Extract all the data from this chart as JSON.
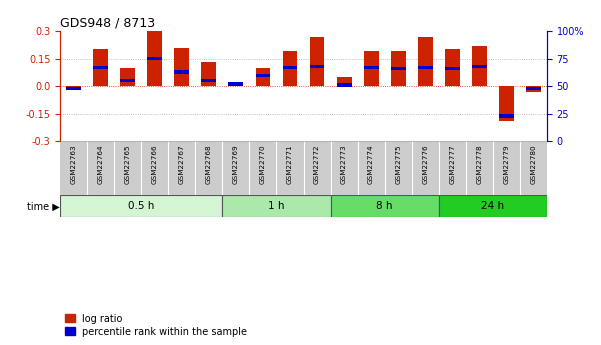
{
  "title": "GDS948 / 8713",
  "samples": [
    "GSM22763",
    "GSM22764",
    "GSM22765",
    "GSM22766",
    "GSM22767",
    "GSM22768",
    "GSM22769",
    "GSM22770",
    "GSM22771",
    "GSM22772",
    "GSM22773",
    "GSM22774",
    "GSM22775",
    "GSM22776",
    "GSM22777",
    "GSM22778",
    "GSM22779",
    "GSM22780"
  ],
  "log_ratio": [
    -0.02,
    0.2,
    0.1,
    0.3,
    0.21,
    0.13,
    0.0,
    0.1,
    0.19,
    0.27,
    0.05,
    0.19,
    0.19,
    0.27,
    0.2,
    0.22,
    -0.19,
    -0.03
  ],
  "percentile_rank": [
    48,
    67,
    55,
    75,
    63,
    55,
    52,
    60,
    67,
    68,
    51,
    67,
    66,
    67,
    66,
    68,
    23,
    48
  ],
  "time_groups": [
    {
      "label": "0.5 h",
      "start": 0,
      "end": 6,
      "color": "#d4f5d4"
    },
    {
      "label": "1 h",
      "start": 6,
      "end": 10,
      "color": "#aae9aa"
    },
    {
      "label": "8 h",
      "start": 10,
      "end": 14,
      "color": "#66dd66"
    },
    {
      "label": "24 h",
      "start": 14,
      "end": 18,
      "color": "#22cc22"
    }
  ],
  "ylim": [
    -0.3,
    0.3
  ],
  "yticks_left": [
    -0.3,
    -0.15,
    0.0,
    0.15,
    0.3
  ],
  "yticks_right": [
    0,
    25,
    50,
    75,
    100
  ],
  "bar_color_red": "#cc2200",
  "bar_color_blue": "#0000cc",
  "bar_width": 0.55,
  "left_axis_color": "#cc2200",
  "right_axis_color": "#0000cc",
  "background_color": "#ffffff",
  "label_bg_color": "#cccccc",
  "legend_red": "log ratio",
  "legend_blue": "percentile rank within the sample"
}
